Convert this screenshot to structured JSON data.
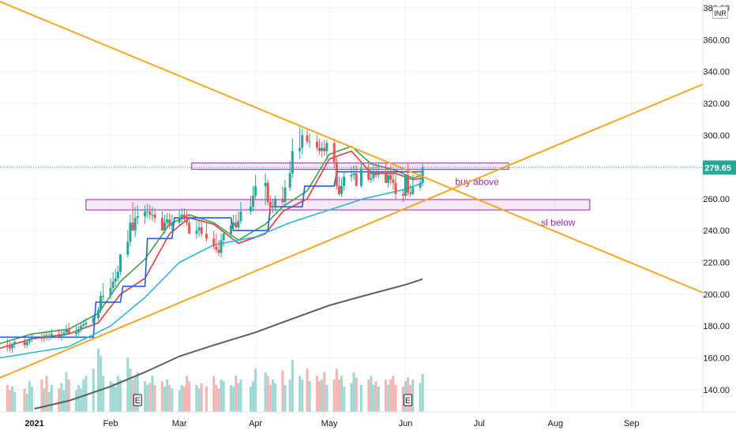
{
  "currency": "INR",
  "chart_data": {
    "type": "candlestick",
    "y_axis": {
      "ticks": [
        140,
        160,
        180,
        200,
        220,
        240,
        260,
        280,
        300,
        320,
        340,
        360,
        380
      ],
      "tick_labels": [
        "140.00",
        "160.00",
        "180.00",
        "200.00",
        "220.00",
        "240.00",
        "260.00",
        "280.00",
        "300.00",
        "320.00",
        "340.00",
        "360.00",
        "380.00"
      ],
      "range": [
        126,
        385
      ]
    },
    "x_axis": {
      "range": [
        "2020-12-18",
        "2021-09-30"
      ],
      "ticks": [
        {
          "date": "2021-01-01",
          "label": "2021"
        },
        {
          "date": "2021-02-01",
          "label": "Feb"
        },
        {
          "date": "2021-03-01",
          "label": "Mar"
        },
        {
          "date": "2021-04-01",
          "label": "Apr"
        },
        {
          "date": "2021-05-01",
          "label": "May"
        },
        {
          "date": "2021-06-01",
          "label": "Jun"
        },
        {
          "date": "2021-07-01",
          "label": "Jul"
        },
        {
          "date": "2021-08-01",
          "label": "Aug"
        },
        {
          "date": "2021-09-01",
          "label": "Sep"
        }
      ]
    },
    "last_price": {
      "value": 279.65,
      "label": "279.65",
      "color": "#26a69a"
    },
    "earnings_markers": [
      {
        "date": "2021-02-12",
        "label": "E"
      },
      {
        "date": "2021-06-02",
        "label": "E"
      }
    ],
    "zones": [
      {
        "name": "buy-zone",
        "from_date": "2021-03-06",
        "to_date": "2021-07-13",
        "y_low": 278.5,
        "y_high": 282.5,
        "label": "buy above",
        "color": "#9c27b0"
      },
      {
        "name": "sl-zone",
        "from_date": "2021-01-22",
        "to_date": "2021-08-15",
        "y_low": 253,
        "y_high": 259.5,
        "label": "sl below",
        "color": "#9c27b0"
      }
    ],
    "trendlines": [
      {
        "name": "falling-trendline",
        "color": "#f5a623",
        "points": [
          [
            "2020-12-18",
            384
          ],
          [
            "2021-09-30",
            201
          ]
        ]
      },
      {
        "name": "rising-trendline",
        "color": "#f5a623",
        "points": [
          [
            "2020-12-18",
            147.5
          ],
          [
            "2021-09-30",
            332
          ]
        ]
      }
    ],
    "moving_averages": [
      {
        "name": "ma-fast",
        "color": "#e53935",
        "points": [
          [
            "2020-12-18",
            166
          ],
          [
            "2020-12-31",
            172
          ],
          [
            "2021-01-15",
            175
          ],
          [
            "2021-01-27",
            182
          ],
          [
            "2021-02-05",
            200
          ],
          [
            "2021-02-15",
            210
          ],
          [
            "2021-02-25",
            238
          ],
          [
            "2021-03-05",
            248
          ],
          [
            "2021-03-15",
            244
          ],
          [
            "2021-03-25",
            232
          ],
          [
            "2021-04-05",
            238
          ],
          [
            "2021-04-12",
            252
          ],
          [
            "2021-04-22",
            260
          ],
          [
            "2021-05-01",
            285
          ],
          [
            "2021-05-10",
            290
          ],
          [
            "2021-05-18",
            276
          ],
          [
            "2021-05-28",
            276
          ],
          [
            "2021-06-04",
            272
          ],
          [
            "2021-06-08",
            273
          ]
        ]
      },
      {
        "name": "ma-medium",
        "color": "#43a047",
        "points": [
          [
            "2020-12-18",
            169
          ],
          [
            "2020-12-31",
            175
          ],
          [
            "2021-01-15",
            178
          ],
          [
            "2021-01-27",
            188
          ],
          [
            "2021-02-05",
            208
          ],
          [
            "2021-02-15",
            222
          ],
          [
            "2021-02-25",
            244
          ],
          [
            "2021-03-05",
            250
          ],
          [
            "2021-03-15",
            245
          ],
          [
            "2021-03-25",
            234
          ],
          [
            "2021-04-05",
            244
          ],
          [
            "2021-04-12",
            255
          ],
          [
            "2021-04-22",
            265
          ],
          [
            "2021-05-01",
            288
          ],
          [
            "2021-05-10",
            293
          ],
          [
            "2021-05-18",
            282
          ],
          [
            "2021-05-28",
            278
          ],
          [
            "2021-06-04",
            273
          ],
          [
            "2021-06-08",
            275
          ]
        ]
      },
      {
        "name": "ma-step",
        "color": "#1e60e0",
        "points": [
          [
            "2020-12-18",
            173
          ],
          [
            "2021-01-25",
            173
          ],
          [
            "2021-01-26",
            195
          ],
          [
            "2021-02-05",
            195
          ],
          [
            "2021-02-06",
            205
          ],
          [
            "2021-02-15",
            205
          ],
          [
            "2021-02-16",
            235
          ],
          [
            "2021-02-26",
            235
          ],
          [
            "2021-02-27",
            248
          ],
          [
            "2021-03-22",
            248
          ],
          [
            "2021-03-23",
            240
          ],
          [
            "2021-04-06",
            240
          ],
          [
            "2021-04-07",
            255
          ],
          [
            "2021-04-20",
            255
          ],
          [
            "2021-04-21",
            268
          ],
          [
            "2021-05-03",
            268
          ],
          [
            "2021-05-04",
            277
          ],
          [
            "2021-06-08",
            277
          ]
        ]
      },
      {
        "name": "ma-slow",
        "color": "#29b6d8",
        "points": [
          [
            "2020-12-18",
            160
          ],
          [
            "2021-01-15",
            167
          ],
          [
            "2021-02-01",
            180
          ],
          [
            "2021-02-15",
            198
          ],
          [
            "2021-03-01",
            220
          ],
          [
            "2021-03-15",
            231
          ],
          [
            "2021-04-01",
            236
          ],
          [
            "2021-04-15",
            245
          ],
          [
            "2021-05-01",
            253
          ],
          [
            "2021-05-15",
            260
          ],
          [
            "2021-06-01",
            266
          ],
          [
            "2021-06-08",
            270
          ]
        ]
      },
      {
        "name": "ma-200",
        "color": "#5d5d5d",
        "points": [
          [
            "2021-01-01",
            128
          ],
          [
            "2021-01-15",
            133
          ],
          [
            "2021-02-01",
            142
          ],
          [
            "2021-02-15",
            151
          ],
          [
            "2021-03-01",
            161
          ],
          [
            "2021-03-15",
            168
          ],
          [
            "2021-04-01",
            176
          ],
          [
            "2021-04-15",
            184
          ],
          [
            "2021-05-01",
            193
          ],
          [
            "2021-05-15",
            199
          ],
          [
            "2021-06-01",
            206
          ],
          [
            "2021-06-08",
            209.5
          ]
        ]
      }
    ],
    "candles": {
      "dates": [
        "2020-12-21",
        "2020-12-22",
        "2020-12-23",
        "2020-12-24",
        "2020-12-28",
        "2020-12-29",
        "2020-12-30",
        "2020-12-31",
        "2021-01-04",
        "2021-01-05",
        "2021-01-06",
        "2021-01-07",
        "2021-01-08",
        "2021-01-11",
        "2021-01-12",
        "2021-01-13",
        "2021-01-14",
        "2021-01-15",
        "2021-01-18",
        "2021-01-19",
        "2021-01-20",
        "2021-01-21",
        "2021-01-22",
        "2021-01-25",
        "2021-01-27",
        "2021-01-28",
        "2021-01-29",
        "2021-02-01",
        "2021-02-02",
        "2021-02-03",
        "2021-02-04",
        "2021-02-05",
        "2021-02-08",
        "2021-02-09",
        "2021-02-10",
        "2021-02-11",
        "2021-02-12",
        "2021-02-15",
        "2021-02-16",
        "2021-02-17",
        "2021-02-18",
        "2021-02-19",
        "2021-02-22",
        "2021-02-23",
        "2021-02-24",
        "2021-02-25",
        "2021-02-26",
        "2021-03-01",
        "2021-03-02",
        "2021-03-03",
        "2021-03-04",
        "2021-03-05",
        "2021-03-08",
        "2021-03-09",
        "2021-03-10",
        "2021-03-12",
        "2021-03-15",
        "2021-03-16",
        "2021-03-17",
        "2021-03-18",
        "2021-03-19",
        "2021-03-22",
        "2021-03-23",
        "2021-03-24",
        "2021-03-25",
        "2021-03-26",
        "2021-03-30",
        "2021-03-31",
        "2021-04-01",
        "2021-04-05",
        "2021-04-06",
        "2021-04-07",
        "2021-04-08",
        "2021-04-09",
        "2021-04-12",
        "2021-04-13",
        "2021-04-15",
        "2021-04-16",
        "2021-04-19",
        "2021-04-20",
        "2021-04-22",
        "2021-04-23",
        "2021-04-26",
        "2021-04-27",
        "2021-04-28",
        "2021-04-29",
        "2021-04-30",
        "2021-05-03",
        "2021-05-04",
        "2021-05-05",
        "2021-05-06",
        "2021-05-07",
        "2021-05-10",
        "2021-05-11",
        "2021-05-12",
        "2021-05-14",
        "2021-05-17",
        "2021-05-18",
        "2021-05-19",
        "2021-05-20",
        "2021-05-21",
        "2021-05-24",
        "2021-05-25",
        "2021-05-26",
        "2021-05-27",
        "2021-05-28",
        "2021-05-31",
        "2021-06-01",
        "2021-06-02",
        "2021-06-03",
        "2021-06-04",
        "2021-06-07",
        "2021-06-08"
      ],
      "open": [
        168,
        167,
        166,
        169,
        170,
        168,
        170,
        172,
        173,
        172,
        174,
        173,
        174,
        175,
        173,
        174,
        176,
        178,
        175,
        176,
        178,
        180,
        181,
        182,
        185,
        190,
        199,
        199,
        204,
        208,
        210,
        214,
        225,
        233,
        245,
        240,
        248,
        249,
        252,
        252,
        250,
        250,
        248,
        240,
        245,
        247,
        243,
        245,
        248,
        250,
        247,
        245,
        238,
        240,
        242,
        238,
        235,
        230,
        228,
        226,
        234,
        238,
        243,
        245,
        242,
        246,
        252,
        255,
        262,
        268,
        270,
        258,
        255,
        255,
        260,
        258,
        267,
        276,
        290,
        292,
        300,
        296,
        296,
        292,
        290,
        292,
        290,
        295,
        283,
        268,
        263,
        268,
        274,
        275,
        276,
        268,
        279,
        272,
        273,
        277,
        275,
        276,
        270,
        275,
        272,
        270,
        263,
        262,
        275,
        264,
        263,
        267,
        270
      ],
      "high": [
        172,
        170,
        169,
        172,
        173,
        172,
        173,
        175,
        176,
        176,
        177,
        177,
        178,
        178,
        177,
        178,
        181,
        182,
        180,
        180,
        182,
        184,
        185,
        187,
        192,
        202,
        207,
        210,
        214,
        216,
        218,
        222,
        240,
        250,
        258,
        255,
        256,
        256,
        257,
        256,
        255,
        254,
        252,
        250,
        251,
        251,
        250,
        253,
        254,
        254,
        252,
        250,
        246,
        248,
        248,
        245,
        240,
        238,
        234,
        238,
        240,
        246,
        250,
        250,
        252,
        258,
        262,
        268,
        275,
        276,
        272,
        262,
        260,
        262,
        268,
        272,
        284,
        298,
        305,
        304,
        304,
        301,
        300,
        298,
        296,
        297,
        297,
        298,
        286,
        274,
        273,
        277,
        280,
        281,
        281,
        283,
        283,
        280,
        281,
        282,
        282,
        282,
        278,
        281,
        280,
        275,
        266,
        270,
        282,
        269,
        275,
        276,
        282
      ],
      "low": [
        164,
        164,
        163,
        166,
        166,
        166,
        168,
        170,
        170,
        170,
        171,
        171,
        172,
        172,
        171,
        172,
        174,
        175,
        173,
        174,
        176,
        178,
        179,
        180,
        183,
        188,
        196,
        197,
        202,
        205,
        208,
        212,
        223,
        230,
        240,
        236,
        244,
        244,
        248,
        247,
        246,
        245,
        240,
        238,
        242,
        241,
        240,
        243,
        245,
        245,
        243,
        238,
        235,
        236,
        236,
        233,
        228,
        226,
        224,
        223,
        230,
        235,
        240,
        241,
        240,
        244,
        250,
        252,
        259,
        256,
        256,
        250,
        251,
        252,
        256,
        256,
        265,
        273,
        285,
        288,
        294,
        292,
        290,
        288,
        286,
        287,
        284,
        279,
        266,
        262,
        261,
        265,
        271,
        272,
        271,
        267,
        271,
        270,
        271,
        273,
        273,
        270,
        267,
        269,
        266,
        260,
        258,
        260,
        262,
        261,
        262,
        265,
        268
      ],
      "close": [
        167,
        166,
        169,
        170,
        168,
        170,
        172,
        173,
        172,
        174,
        173,
        174,
        175,
        173,
        174,
        176,
        178,
        175,
        176,
        178,
        180,
        181,
        182,
        185,
        190,
        199,
        199,
        204,
        208,
        210,
        214,
        225,
        233,
        245,
        240,
        248,
        249,
        252,
        252,
        250,
        250,
        248,
        240,
        245,
        247,
        243,
        245,
        248,
        250,
        247,
        245,
        238,
        240,
        242,
        238,
        235,
        230,
        228,
        226,
        234,
        238,
        243,
        245,
        242,
        246,
        252,
        255,
        262,
        268,
        270,
        258,
        255,
        255,
        260,
        258,
        267,
        276,
        290,
        292,
        300,
        296,
        296,
        292,
        290,
        292,
        290,
        295,
        283,
        268,
        263,
        268,
        274,
        275,
        276,
        268,
        279,
        272,
        273,
        277,
        275,
        276,
        270,
        275,
        272,
        270,
        263,
        262,
        275,
        264,
        263,
        267,
        270,
        279.65
      ],
      "volume": [
        30,
        24,
        28,
        22,
        26,
        20,
        34,
        28,
        36,
        26,
        40,
        22,
        30,
        26,
        32,
        24,
        44,
        36,
        24,
        30,
        26,
        36,
        40,
        48,
        70,
        62,
        40,
        34,
        32,
        28,
        40,
        36,
        60,
        48,
        36,
        40,
        44,
        34,
        30,
        32,
        40,
        30,
        34,
        28,
        36,
        30,
        26,
        24,
        30,
        28,
        40,
        34,
        30,
        26,
        32,
        28,
        40,
        30,
        26,
        36,
        34,
        30,
        28,
        40,
        32,
        36,
        28,
        34,
        48,
        44,
        40,
        30,
        36,
        32,
        46,
        30,
        36,
        58,
        40,
        36,
        48,
        34,
        40,
        34,
        36,
        44,
        30,
        36,
        48,
        36,
        40,
        28,
        32,
        44,
        38,
        30,
        36,
        40,
        30,
        34,
        28,
        36,
        30,
        36,
        40,
        30,
        28,
        34,
        38,
        30,
        36,
        32,
        42
      ]
    }
  }
}
